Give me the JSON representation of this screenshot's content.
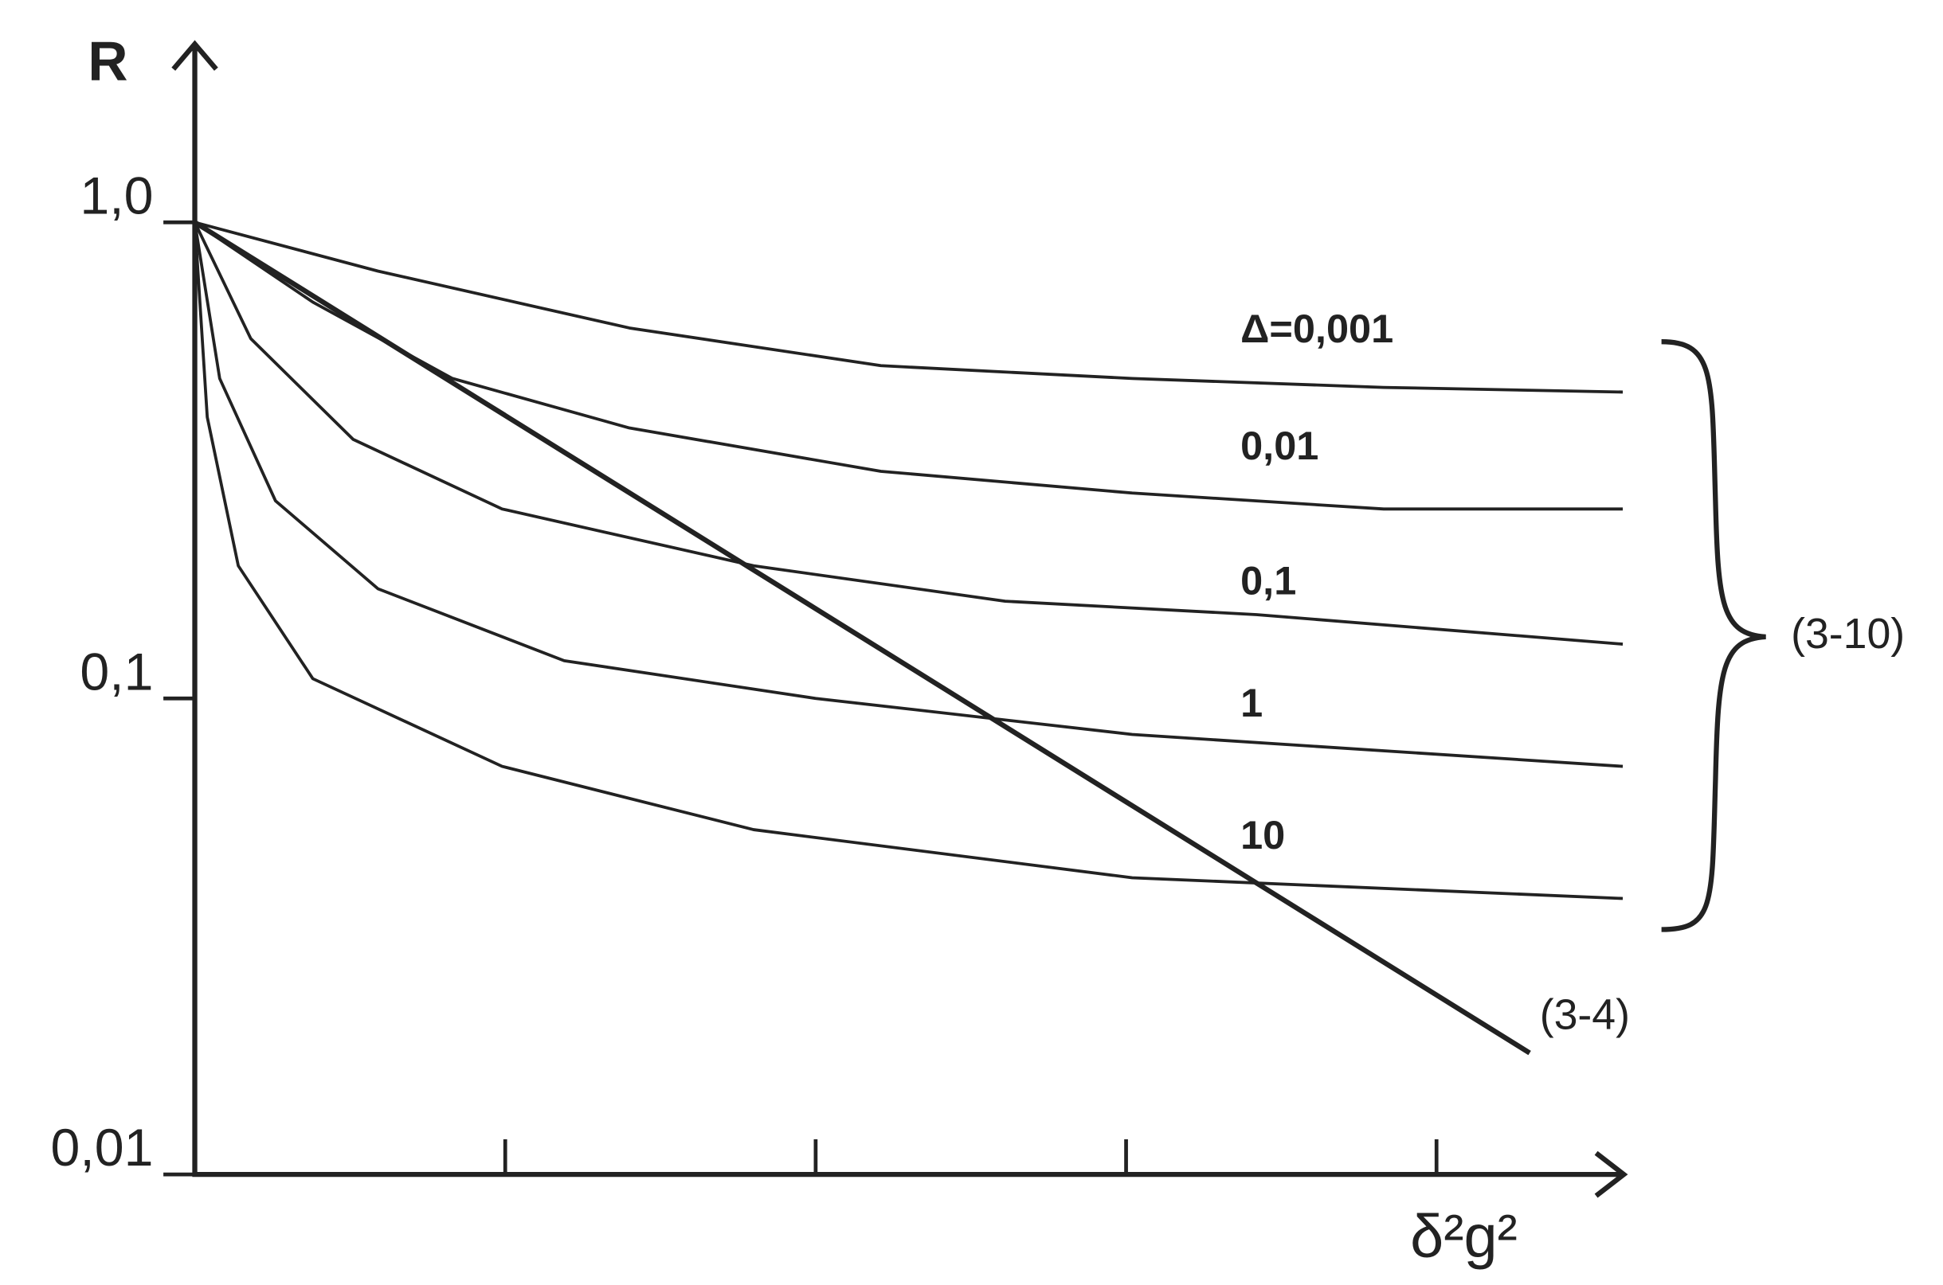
{
  "chart_data": {
    "type": "line",
    "y_label": "R",
    "x_label": "δ²g²",
    "log_y": true,
    "xlim": [
      0,
      4.6
    ],
    "xticks": [
      1,
      2,
      3,
      4
    ],
    "ylim": [
      0.01,
      2.4
    ],
    "yticks": [
      {
        "value": 0.01,
        "label": "0,01"
      },
      {
        "value": 0.1,
        "label": "0,1"
      },
      {
        "value": 1,
        "label": "1,0"
      }
    ],
    "color": "#222222",
    "series": [
      {
        "name": "Δ=0,001",
        "x": [
          0,
          0.59,
          1.4,
          2.21,
          3.02,
          3.83,
          4.6
        ],
        "values": [
          1,
          0.79,
          0.6,
          0.5,
          0.47,
          0.45,
          0.44
        ]
      },
      {
        "name": "0,01",
        "x": [
          0,
          0.38,
          0.83,
          1.4,
          2.21,
          3.02,
          3.83,
          4.6
        ],
        "values": [
          1,
          0.68,
          0.47,
          0.37,
          0.3,
          0.27,
          0.25,
          0.25
        ]
      },
      {
        "name": "0,1",
        "x": [
          0,
          0.18,
          0.51,
          0.99,
          1.8,
          2.61,
          3.42,
          4.6
        ],
        "values": [
          1,
          0.57,
          0.35,
          0.25,
          0.19,
          0.16,
          0.15,
          0.13
        ]
      },
      {
        "name": "1",
        "x": [
          0,
          0.08,
          0.26,
          0.59,
          1.19,
          2.0,
          3.02,
          4.6
        ],
        "values": [
          1,
          0.47,
          0.26,
          0.17,
          0.12,
          0.1,
          0.084,
          0.072
        ]
      },
      {
        "name": "10",
        "x": [
          0,
          0.04,
          0.14,
          0.38,
          0.99,
          1.8,
          3.02,
          4.6
        ],
        "values": [
          1,
          0.39,
          0.19,
          0.11,
          0.072,
          0.053,
          0.042,
          0.038
        ]
      },
      {
        "name": "(3-4)",
        "x": [
          0,
          4.3
        ],
        "values": [
          1,
          0.018
        ]
      }
    ],
    "annotation": "(3-10)"
  }
}
